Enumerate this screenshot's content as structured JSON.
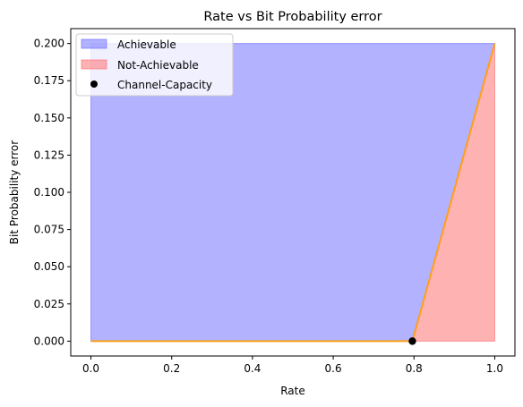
{
  "chart_data": {
    "type": "area",
    "title": "Rate vs Bit Probability error",
    "xlabel": "Rate",
    "ylabel": "Bit Probability error",
    "xlim": [
      -0.05,
      1.05
    ],
    "ylim": [
      -0.01,
      0.21
    ],
    "xticks": [
      0.0,
      0.2,
      0.4,
      0.6,
      0.8,
      1.0
    ],
    "xtick_labels": [
      "0.0",
      "0.2",
      "0.4",
      "0.6",
      "0.8",
      "1.0"
    ],
    "yticks": [
      0.0,
      0.025,
      0.05,
      0.075,
      0.1,
      0.125,
      0.15,
      0.175,
      0.2
    ],
    "ytick_labels": [
      "0.000",
      "0.025",
      "0.050",
      "0.075",
      "0.100",
      "0.125",
      "0.150",
      "0.175",
      "0.200"
    ],
    "grid": false,
    "legend": {
      "placement": "top-left",
      "entries": [
        "Achievable",
        "Not-Achievable",
        "Channel-Capacity"
      ]
    },
    "series": [
      {
        "name": "Achievable",
        "kind": "fill",
        "color": "#6666ff",
        "points": [
          [
            0.0,
            0.0
          ],
          [
            0.0,
            0.2
          ],
          [
            1.0,
            0.2
          ],
          [
            0.796,
            0.0
          ]
        ]
      },
      {
        "name": "Not-Achievable",
        "kind": "fill",
        "color": "#ff6666",
        "points": [
          [
            0.796,
            0.0
          ],
          [
            1.0,
            0.2
          ],
          [
            1.0,
            0.0
          ]
        ]
      },
      {
        "name": "boundary",
        "kind": "line",
        "color": "#ff9f1a",
        "points": [
          [
            0.0,
            0.0
          ],
          [
            0.796,
            0.0
          ],
          [
            1.0,
            0.2
          ]
        ]
      },
      {
        "name": "Channel-Capacity",
        "kind": "scatter",
        "color": "#000000",
        "points": [
          [
            0.796,
            0.0
          ]
        ]
      }
    ]
  }
}
